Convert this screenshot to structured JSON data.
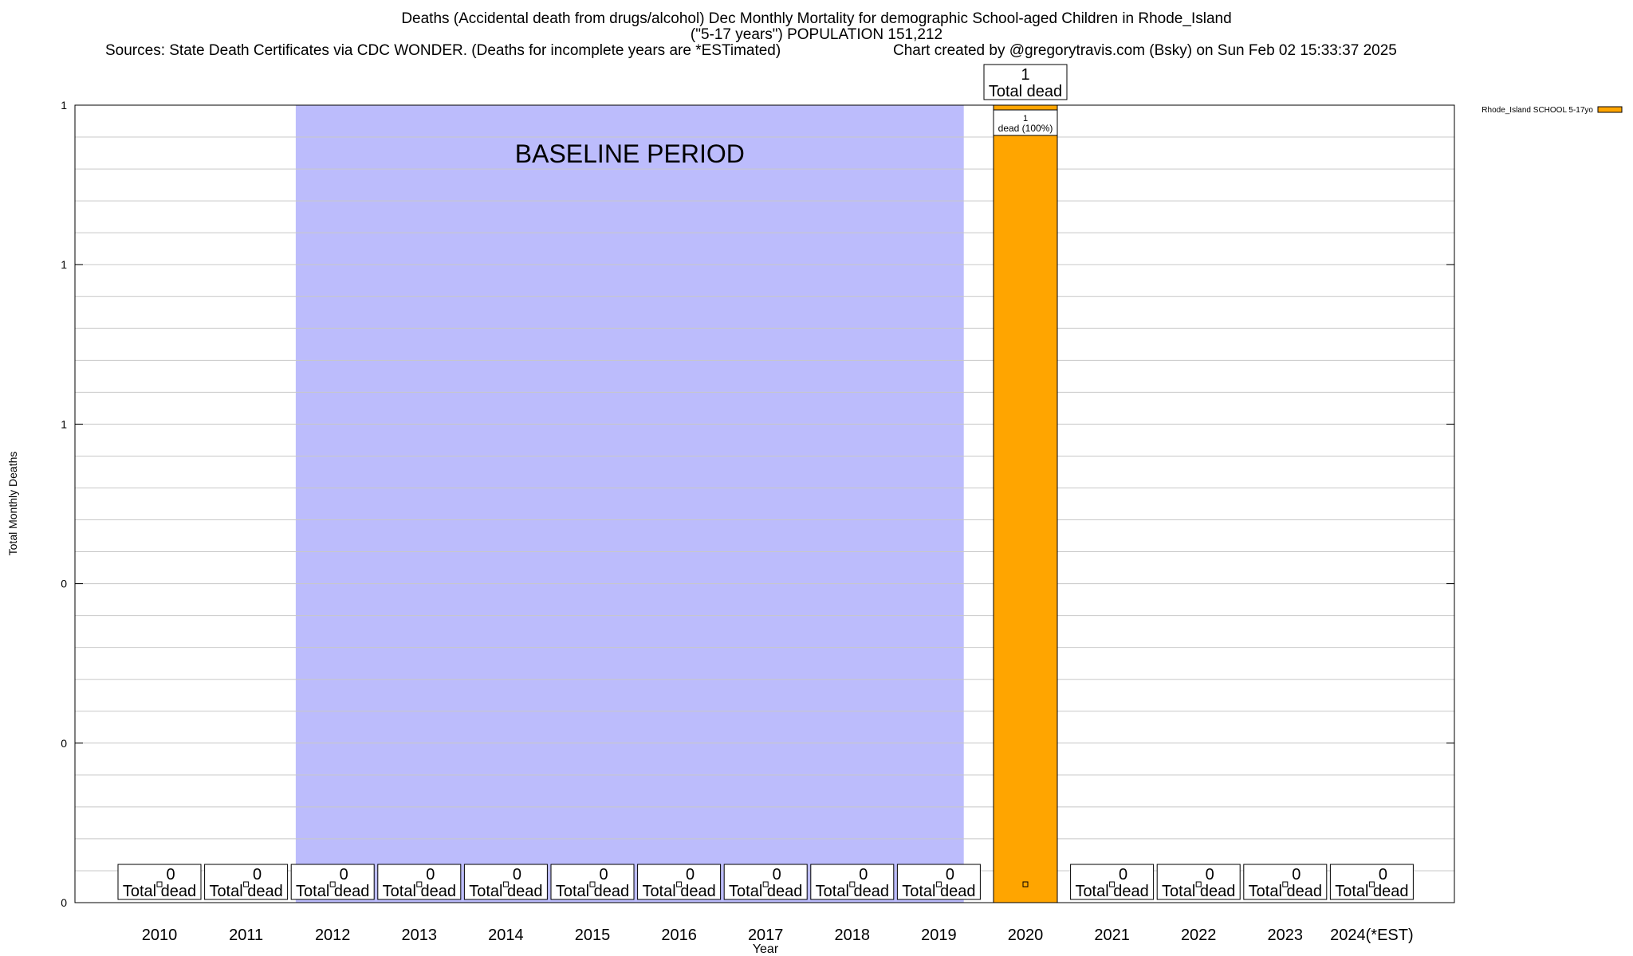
{
  "header": {
    "title_line1": "Deaths (Accidental death from drugs/alcohol) Dec Monthly Mortality for demographic School-aged Children in Rhode_Island",
    "title_line2": "(\"5-17 years\") POPULATION 151,212",
    "sources": "Sources: State Death Certificates via CDC WONDER. (Deaths for incomplete years are *ESTimated)",
    "credit": "Chart created by @gregorytravis.com (Bsky) on Sun Feb 02 15:33:37 2025"
  },
  "chart_data": {
    "type": "bar",
    "xlabel": "Year",
    "ylabel": "Total Monthly Deaths",
    "ylim": [
      0,
      1
    ],
    "y_tick_labels": [
      "0",
      "0",
      "0",
      "1",
      "1",
      "1"
    ],
    "grid": true,
    "categories": [
      "2010",
      "2011",
      "2012",
      "2013",
      "2014",
      "2015",
      "2016",
      "2017",
      "2018",
      "2019",
      "2020",
      "2021",
      "2022",
      "2023",
      "2024(*EST)"
    ],
    "series": [
      {
        "name": "Rhode_Island SCHOOL 5-17yo",
        "color": "#FFA500",
        "values": [
          0,
          0,
          0,
          0,
          0,
          0,
          0,
          0,
          0,
          0,
          1,
          0,
          0,
          0,
          0
        ]
      }
    ],
    "total_label_values": [
      "0",
      "0",
      "0",
      "0",
      "0",
      "0",
      "0",
      "0",
      "0",
      "0",
      "1",
      "0",
      "0",
      "0",
      "0"
    ],
    "total_label_suffix": "Total dead",
    "segment_labels": [
      {
        "category": "2020",
        "count": "1",
        "text": "dead (100%)"
      }
    ],
    "baseline": {
      "label": "BASELINE PERIOD",
      "start": "2012",
      "end": "2019",
      "color": "#BCBCFC"
    },
    "legend": {
      "position": "top-right"
    }
  }
}
